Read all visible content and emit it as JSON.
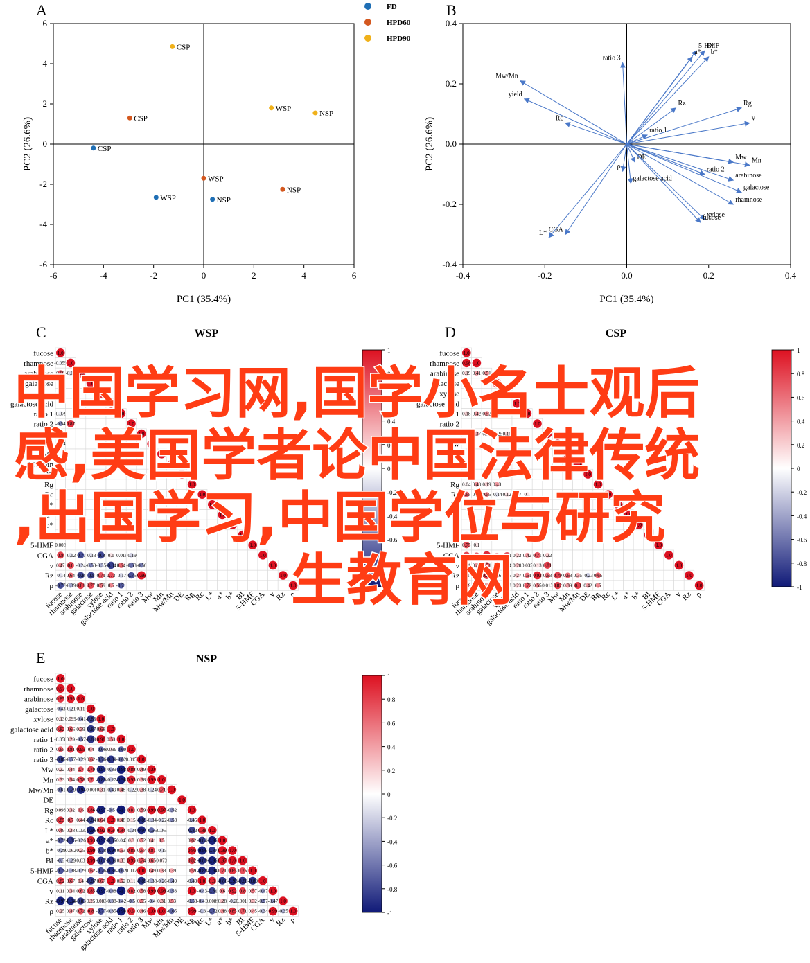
{
  "chart_data": [
    {
      "type": "scatter",
      "panel_letter": "A",
      "xlabel": "PC1 (35.4%)",
      "ylabel": "PC2 (26.6%)",
      "xlim": [
        -6,
        6
      ],
      "ylim": [
        -6,
        6
      ],
      "xticks": [
        "-6",
        "-4",
        "-2",
        "0",
        "2",
        "4",
        "6"
      ],
      "yticks": [
        "6",
        "4",
        "2",
        "0",
        "-2",
        "-4",
        "-6"
      ],
      "legend_position": "top-right, outside",
      "series": [
        {
          "name": "FD",
          "color": "#1f6fb5",
          "points": [
            {
              "x": -4.4,
              "y": -0.2,
              "label": "CSP"
            },
            {
              "x": -1.9,
              "y": -2.65,
              "label": "WSP"
            },
            {
              "x": 0.35,
              "y": -2.75,
              "label": "NSP"
            }
          ]
        },
        {
          "name": "HPD60",
          "color": "#d4581f",
          "points": [
            {
              "x": -2.95,
              "y": 1.3,
              "label": "CSP"
            },
            {
              "x": 0.0,
              "y": -1.7,
              "label": "WSP"
            },
            {
              "x": 3.15,
              "y": -2.25,
              "label": "NSP"
            }
          ]
        },
        {
          "name": "HPD90",
          "color": "#f0b11a",
          "points": [
            {
              "x": -1.25,
              "y": 4.85,
              "label": "CSP"
            },
            {
              "x": 2.7,
              "y": 1.8,
              "label": "WSP"
            },
            {
              "x": 4.45,
              "y": 1.55,
              "label": "NSP"
            }
          ]
        }
      ]
    },
    {
      "type": "biplot",
      "panel_letter": "B",
      "xlabel": "PC1 (35.4%)",
      "ylabel": "PC2 (26.6%)",
      "xlim": [
        -0.4,
        0.4
      ],
      "ylim": [
        -0.4,
        0.4
      ],
      "xticks": [
        "-0.4",
        "-0.2",
        "0.0",
        "0.2",
        "0.4"
      ],
      "yticks": [
        "0.4",
        "0.2",
        "0.0",
        "-0.2",
        "-0.4"
      ],
      "arrow_color": "#4a78c8",
      "loadings": [
        {
          "label": "5-HMF",
          "x": 0.17,
          "y": 0.31
        },
        {
          "label": "BI",
          "x": 0.19,
          "y": 0.31
        },
        {
          "label": "a*",
          "x": 0.16,
          "y": 0.29
        },
        {
          "label": "b*",
          "x": 0.2,
          "y": 0.29
        },
        {
          "label": "ratio 3",
          "x": -0.01,
          "y": 0.27
        },
        {
          "label": "Mw/Mn",
          "x": -0.26,
          "y": 0.21
        },
        {
          "label": "yield",
          "x": -0.25,
          "y": 0.15
        },
        {
          "label": "Rc",
          "x": -0.15,
          "y": 0.07
        },
        {
          "label": "Rz",
          "x": 0.12,
          "y": 0.12
        },
        {
          "label": "Rg",
          "x": 0.28,
          "y": 0.12
        },
        {
          "label": "v",
          "x": 0.3,
          "y": 0.07
        },
        {
          "label": "ratio 1",
          "x": 0.05,
          "y": 0.03
        },
        {
          "label": "DE",
          "x": 0.02,
          "y": -0.06
        },
        {
          "label": "ρ",
          "x": -0.01,
          "y": -0.09
        },
        {
          "label": "Mw",
          "x": 0.26,
          "y": -0.06
        },
        {
          "label": "Mn",
          "x": 0.3,
          "y": -0.07
        },
        {
          "label": "ratio 2",
          "x": 0.19,
          "y": -0.1
        },
        {
          "label": "arabinose",
          "x": 0.26,
          "y": -0.12
        },
        {
          "label": "galactose",
          "x": 0.28,
          "y": -0.16
        },
        {
          "label": "rhamnose",
          "x": 0.26,
          "y": -0.2
        },
        {
          "label": "galactose acid",
          "x": 0.01,
          "y": -0.13
        },
        {
          "label": "xylose",
          "x": 0.19,
          "y": -0.25
        },
        {
          "label": "fucose",
          "x": 0.18,
          "y": -0.26
        },
        {
          "label": "L*",
          "x": -0.19,
          "y": -0.31
        },
        {
          "label": "CGA",
          "x": -0.15,
          "y": -0.3
        }
      ]
    },
    {
      "type": "heatmap",
      "panel_letter": "C",
      "title": "WSP",
      "variables": [
        "fucose",
        "rhamnose",
        "arabinose",
        "galactose",
        "xylose",
        "galactose acid",
        "ratio 1",
        "ratio 2",
        "ratio 3",
        "Mw",
        "Mn",
        "Mw/Mn",
        "DE",
        "Rg",
        "Rc",
        "L*",
        "a*",
        "b*",
        "BI",
        "5-HMF",
        "CGA",
        "v",
        "Rz",
        "ρ"
      ],
      "scale_ticks": [
        "1",
        "0.8",
        "0.6",
        "0.4",
        "0.2",
        "0",
        "-0.2",
        "-0.4",
        "-0.6",
        "-0.8",
        "-1"
      ],
      "values": {
        "fucose": [
          1
        ],
        "rhamnose": [
          -0.055,
          1
        ],
        "arabinose": [
          0.68,
          -0.15,
          1
        ],
        "ratio 1": [
          -0.079
        ],
        "ratio 2": [
          -0.54,
          0.87
        ],
        "Mw": [
          -0.34
        ],
        "5-HMF": [
          0.003
        ],
        "CGA": [
          0.8,
          -0.12,
          -0.77,
          -0.13,
          -0.8,
          0.1,
          -0.019,
          -0.19
        ],
        "v": [
          0.47,
          0.8,
          -0.24,
          -0.53,
          -0.35,
          -0.84,
          0.64,
          -0.63,
          -0.56
        ],
        "Rz": [
          -0.14,
          0.64,
          -0.8,
          -0.8,
          0.71,
          0.73,
          -0.17,
          -0.75,
          0.96
        ],
        "ρ": [
          -0.77,
          -0.39,
          0.81,
          0.77,
          0.59,
          0.5,
          -0.71
        ]
      }
    },
    {
      "type": "heatmap",
      "panel_letter": "D",
      "title": "CSP",
      "variables": [
        "fucose",
        "rhamnose",
        "arabinose",
        "galactose",
        "xylose",
        "galactose acid",
        "ratio 1",
        "ratio 2",
        "ratio 3",
        "Mw",
        "Mn",
        "Mw/Mn",
        "DE",
        "Rg",
        "Rc",
        "L*",
        "a*",
        "b*",
        "BI",
        "5-HMF",
        "CGA",
        "v",
        "Rz",
        "ρ"
      ],
      "scale_ticks": [
        "1",
        "0.8",
        "0.6",
        "0.4",
        "0.2",
        "0",
        "-0.2",
        "-0.4",
        "-0.6",
        "-0.8",
        "-1"
      ],
      "values": {
        "fucose": [
          1
        ],
        "rhamnose": [
          0.98,
          1
        ],
        "arabinose": [
          0.19,
          0.41,
          0.51,
          1
        ],
        "ratio 1": [
          0.18,
          0.42,
          0.52,
          0.7
        ],
        "ratio 3": [
          0.33,
          0.37,
          0.14,
          0.025,
          0.18
        ],
        "Rg": [
          0.04,
          0.48,
          0.19,
          0.43
        ],
        "Rc": [
          0.65,
          0.14,
          0.55,
          -0.14,
          0.12,
          0.47,
          0.1
        ],
        "5-HMF": [
          0.75,
          0.1
        ],
        "CGA": [
          0.77,
          0.62,
          0.89,
          0.34,
          0.71,
          0.22,
          0.42,
          0.71,
          0.22
        ],
        "v": [
          -0.1,
          0.46,
          0.71,
          0.8,
          0.24,
          0.28,
          0.035,
          0.13,
          0.81
        ],
        "Rz": [
          0.1,
          0.75,
          0.85,
          0.56,
          0.35,
          0.27,
          0.61,
          0.92,
          0.63,
          0.79,
          0.63,
          0.35,
          -0.23,
          0.65
        ],
        "ρ": [
          0.59,
          0.05,
          0.4,
          0.38,
          0.53,
          0.23,
          0.72,
          0.55,
          0.013,
          0.82,
          0.39,
          0.8,
          0.42,
          0.5
        ]
      }
    },
    {
      "type": "heatmap",
      "panel_letter": "E",
      "title": "NSP",
      "variables": [
        "fucose",
        "rhamnose",
        "arabinose",
        "galactose",
        "xylose",
        "galactose acid",
        "ratio 1",
        "ratio 2",
        "ratio 3",
        "Mw",
        "Mn",
        "Mw/Mn",
        "DE",
        "Rg",
        "Rc",
        "L*",
        "a*",
        "b*",
        "BI",
        "5-HMF",
        "CGA",
        "v",
        "Rz",
        "ρ"
      ],
      "scale_ticks": [
        "1",
        "0.8",
        "0.6",
        "0.4",
        "0.2",
        "0",
        "-0.2",
        "-0.4",
        "-0.6",
        "-0.8",
        "-1"
      ],
      "values": {
        "fucose": [
          1
        ],
        "rhamnose": [
          0.97,
          1
        ],
        "arabinose": [
          0.85,
          0.95,
          1
        ],
        "galactose": [
          -0.43,
          -0.21,
          0.11,
          1
        ],
        "xylose": [
          0.13,
          0.099,
          -0.41,
          -0.85,
          1
        ],
        "galactose acid": [
          0.82,
          0.66,
          0.39,
          -0.87,
          0.68,
          1
        ],
        "ratio 1": [
          -0.058,
          0.29,
          -0.57,
          -0.88,
          0.98,
          0.53,
          1
        ],
        "ratio 2": [
          0.65,
          0.81,
          0.95,
          0.4,
          -0.66,
          0.099,
          -0.69,
          1
        ],
        "ratio 3": [
          -0.85,
          -0.57,
          -0.29,
          0.62,
          -0.76,
          -0.89,
          -0.62,
          0.015,
          1
        ],
        "Mw": [
          0.22,
          0.44,
          0.7,
          0.79,
          -0.94,
          -0.39,
          -0.98,
          0.88,
          0.49,
          1
        ],
        "Mn": [
          0.33,
          0.54,
          0.78,
          0.71,
          -0.89,
          -0.27,
          -0.96,
          0.93,
          0.38,
          0.99,
          1
        ],
        "Mw/Mn": [
          -0.61,
          -0.79,
          -0.94,
          -0.008,
          0.31,
          -0.49,
          0.48,
          -0.22,
          0.38,
          -0.24,
          0.71,
          1
        ],
        "Rg": [
          0.093,
          0.32,
          0.6,
          0.86,
          -0.97,
          -0.5,
          -1.0,
          0.81,
          0.59,
          0.99,
          0.97,
          -0.52,
          null,
          1
        ],
        "Rc": [
          0.85,
          0.7,
          0.44,
          -0.84,
          0.64,
          1.0,
          0.48,
          0.15,
          -0.89,
          -0.34,
          -0.22,
          -0.53,
          null,
          -0.45,
          1
        ],
        "L*": [
          0.49,
          0.28,
          -0.037,
          -0.96,
          0.92,
          0.9,
          0.84,
          -0.24,
          -0.94,
          -0.66,
          -0.066,
          null,
          null,
          -0.82,
          0.88,
          1
        ],
        "a*": [
          -0.72,
          -0.85,
          -0.26,
          0.93,
          -0.97,
          -0.85,
          -0.047,
          0.3,
          0.52,
          0.41,
          0.5,
          null,
          null,
          0.62,
          -0.84,
          -0.96,
          1
        ],
        "b*": [
          -0.29,
          0.062,
          0.25,
          0.99,
          -0.78,
          -0.94,
          0.53,
          0.85,
          0.67,
          0.81,
          -0.15,
          null,
          null,
          0.95,
          -0.96,
          -0.87,
          0.99,
          1
        ],
        "BI": [
          -0.5,
          -0.29,
          0.03,
          0.99,
          -0.87,
          -0.89,
          0.33,
          0.95,
          0.74,
          0.65,
          0.073,
          null,
          null,
          0.82,
          -0.89,
          -0.96,
          0.97,
          1
        ],
        "5-HMF": [
          -0.75,
          -0.38,
          -0.29,
          0.62,
          -0.76,
          -0.89,
          -0.62,
          0.012,
          1.0,
          0.49,
          0.38,
          0.39,
          null,
          0.59,
          -0.89,
          -0.94,
          0.71,
          0.85,
          0.75,
          1
        ],
        "CGA": [
          0.82,
          0.67,
          0.4,
          -0.87,
          0.67,
          1.0,
          0.52,
          0.11,
          -0.89,
          -0.38,
          -0.26,
          -0.49,
          null,
          -0.49,
          1.0,
          0.9,
          -0.86,
          -0.93,
          -0.88,
          -0.89,
          1
        ],
        "v": [
          0.11,
          0.34,
          0.62,
          0.85,
          -0.97,
          -0.48,
          -1.0,
          0.82,
          0.58,
          0.99,
          0.98,
          -0.53,
          null,
          1.0,
          -0.43,
          -0.81,
          0.6,
          0.92,
          0.8,
          0.57,
          -0.47,
          1
        ],
        "Rz": [
          -0.97,
          -0.94,
          -0.83,
          0.25,
          0.083,
          -0.38,
          -0.42,
          -0.5,
          0.55,
          -0.4,
          0.31,
          0.53,
          null,
          -0.58,
          -0.41,
          0.0089,
          0.28,
          -0.2,
          0.0018,
          0.32,
          -0.57,
          -0.47,
          1
        ],
        "ρ": [
          0.25,
          0.47,
          0.72,
          0.8,
          -0.77,
          -0.35,
          -0.98,
          0.9,
          0.46,
          1.0,
          1.0,
          -0.65,
          null,
          0.99,
          -0.3,
          -0.72,
          0.48,
          0.85,
          0.71,
          0.45,
          -0.34,
          0.99,
          -0.35,
          1
        ]
      }
    }
  ],
  "watermark": {
    "line1": "中国学习网,国学小名士观后",
    "line2": "感,美国学者论中国法律传统",
    "line3": ",出国学习,中国学位与研究",
    "line4": "生教育网",
    "color": "#ff3c14"
  }
}
